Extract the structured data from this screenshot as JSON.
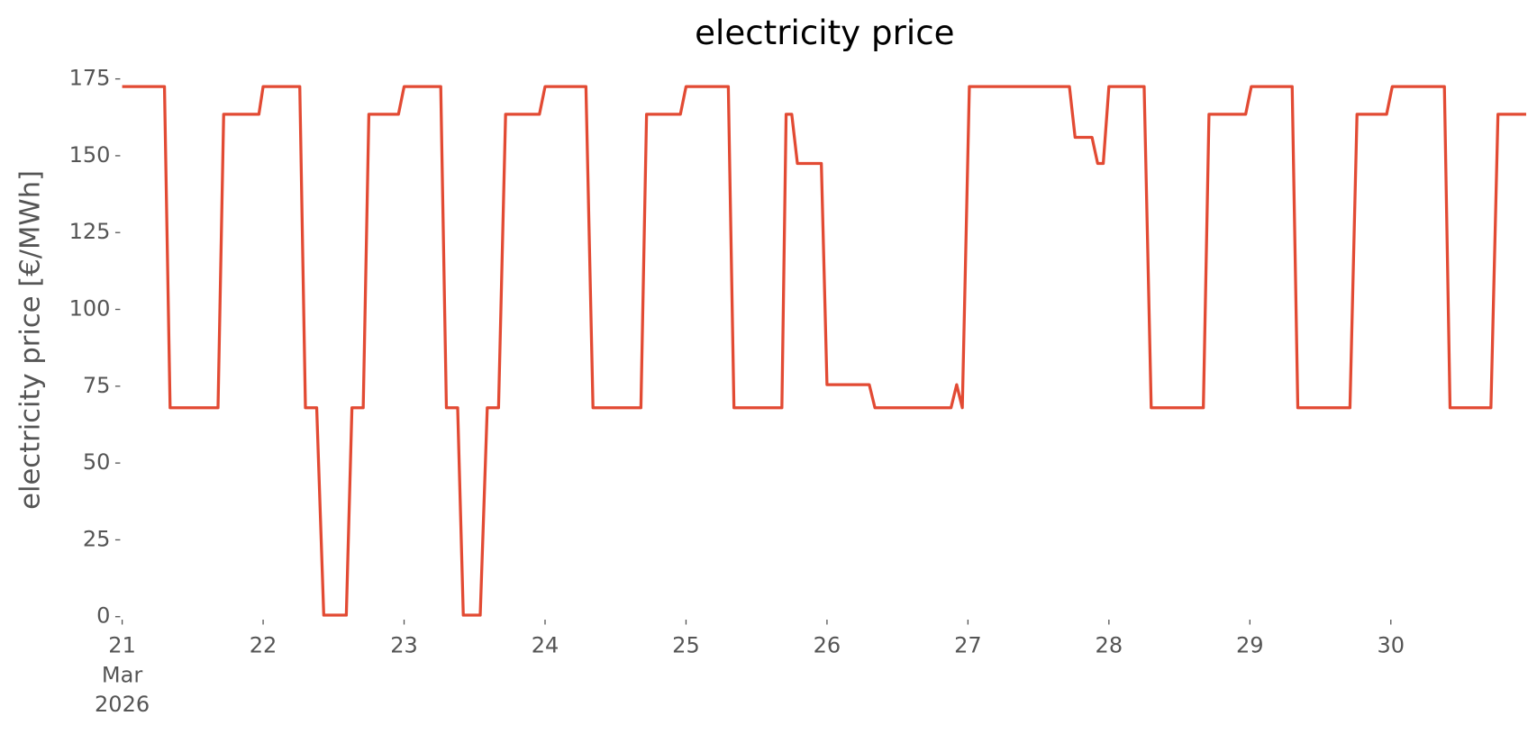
{
  "chart_data": {
    "type": "line",
    "title": "electricity price",
    "y_label": "electricity price [€/MWh]",
    "x": [
      21.0,
      21.3,
      21.34,
      21.68,
      21.72,
      21.97,
      22.0,
      22.26,
      22.3,
      22.38,
      22.43,
      22.59,
      22.63,
      22.71,
      22.75,
      22.96,
      23.0,
      23.26,
      23.3,
      23.38,
      23.42,
      23.54,
      23.59,
      23.67,
      23.72,
      23.96,
      24.0,
      24.29,
      24.34,
      24.68,
      24.72,
      24.96,
      25.0,
      25.3,
      25.34,
      25.68,
      25.71,
      25.75,
      25.79,
      25.96,
      26.0,
      26.3,
      26.34,
      26.88,
      26.92,
      26.96,
      27.01,
      27.72,
      27.76,
      27.88,
      27.92,
      27.96,
      28.0,
      28.25,
      28.3,
      28.67,
      28.71,
      28.97,
      29.01,
      29.3,
      29.34,
      29.71,
      29.76,
      29.97,
      30.01,
      30.38,
      30.42,
      30.71,
      30.76,
      30.96
    ],
    "series": [
      {
        "name": "electricity price",
        "color": "#E24A33",
        "values": [
          172.5,
          172.5,
          68,
          68,
          163.5,
          163.5,
          172.5,
          172.5,
          68,
          68,
          0.5,
          0.5,
          68,
          68,
          163.5,
          163.5,
          172.5,
          172.5,
          68,
          68,
          0.5,
          0.5,
          68,
          68,
          163.5,
          163.5,
          172.5,
          172.5,
          68,
          68,
          163.5,
          163.5,
          172.5,
          172.5,
          68,
          68,
          163.5,
          163.5,
          147.5,
          147.5,
          75.5,
          75.5,
          68,
          68,
          75.5,
          68,
          172.5,
          172.5,
          156,
          156,
          147.5,
          147.5,
          172.5,
          172.5,
          68,
          68,
          163.5,
          163.5,
          172.5,
          172.5,
          68,
          68,
          163.5,
          163.5,
          172.5,
          172.5,
          68,
          68,
          163.5,
          163.5
        ]
      }
    ],
    "xlim": [
      21.0,
      30.96
    ],
    "xticks": [
      {
        "value": 21,
        "label": "21\nMar\n2026"
      },
      22,
      23,
      24,
      25,
      26,
      27,
      28,
      29,
      30
    ],
    "ylim": [
      0,
      175
    ],
    "yticks": [
      0,
      25,
      50,
      75,
      100,
      125,
      150,
      175
    ],
    "grid": false
  }
}
